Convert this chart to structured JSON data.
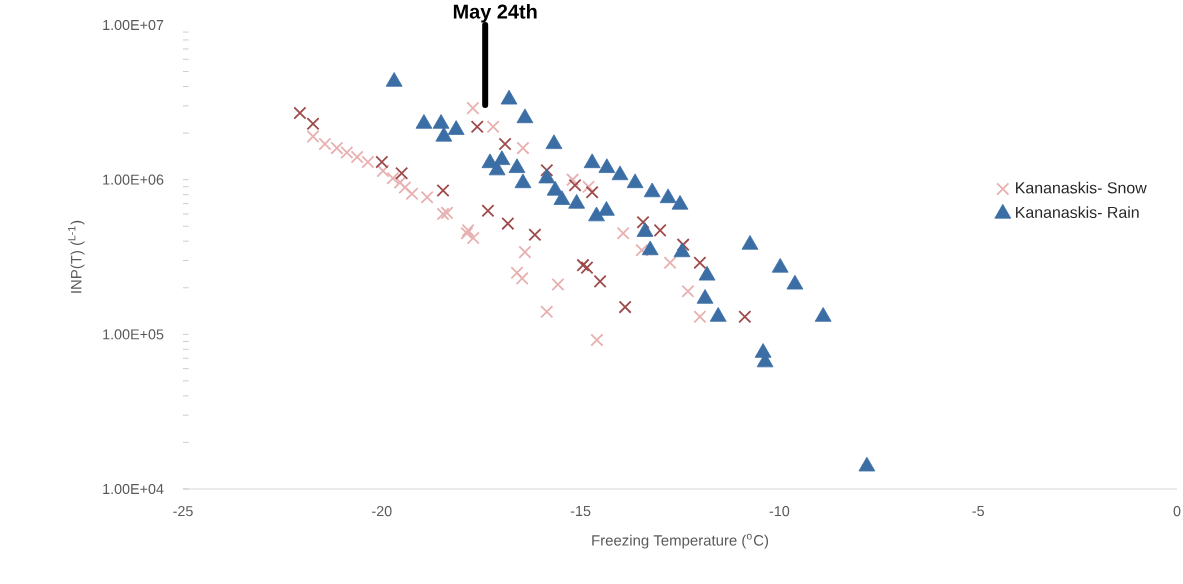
{
  "chart_data": {
    "type": "scatter",
    "xlabel": "Freezing Temperature ($^{o}$C)",
    "ylabel": "INP(T) ($^{L-1}$)",
    "log": "y",
    "legend": "right",
    "xlim": [
      -25,
      0
    ],
    "xticks": [
      -25,
      -20,
      -15,
      -10,
      -5,
      0
    ],
    "ylim": [
      10000,
      10000000
    ],
    "yticks": [
      {
        "value": 10000,
        "label": "1.00E+04"
      },
      {
        "value": 100000,
        "label": "1.00E+05"
      },
      {
        "value": 1000000,
        "label": "1.00E+06"
      },
      {
        "value": 10000000,
        "label": "1.00E+07"
      }
    ],
    "ref_lines": [
      {
        "axis": "x",
        "value": -17.4,
        "label": "May 24th",
        "color": "#000000"
      }
    ],
    "series": [
      {
        "name": "Kananaskis- Snow",
        "color": "#e8b0b0",
        "marker": "cross",
        "x": [
          -21.73,
          -21.43,
          -21.13,
          -20.88,
          -20.62,
          -20.35,
          -19.97,
          -19.72,
          -19.54,
          -19.42,
          -19.24,
          -18.86,
          -18.46,
          -17.86,
          -17.7,
          -17.71,
          -17.2,
          -16.45,
          -16.6,
          -18.36,
          -17.83,
          -16.4,
          -16.47,
          -15.57,
          -15.85,
          -14.59,
          -13.93,
          -12.75,
          -12.3,
          -12.0,
          -13.46,
          -15.2,
          -14.8
        ],
        "values": [
          1900000,
          1700000,
          1600000,
          1500000,
          1400000,
          1300000,
          1140000,
          1020000,
          960000,
          890000,
          810000,
          770000,
          600000,
          450000,
          420000,
          2900000,
          2200000,
          1600000,
          250000,
          610000,
          470000,
          340000,
          230000,
          210000,
          140000,
          92000,
          450000,
          290000,
          190000,
          130000,
          350000,
          1000000,
          900000
        ]
      },
      {
        "color": "#9e4a4a",
        "marker": "cross",
        "x": [
          -22.06,
          -21.73,
          -20.0,
          -19.5,
          -18.46,
          -17.6,
          -17.33,
          -16.83,
          -16.9,
          -15.85,
          -15.14,
          -14.71,
          -16.15,
          -14.94,
          -14.84,
          -14.51,
          -13.88,
          -13.43,
          -13.0,
          -12.42,
          -12.0,
          -10.87
        ],
        "values": [
          2700000,
          2300000,
          1300000,
          1100000,
          850000,
          2200000,
          630000,
          520000,
          1700000,
          1150000,
          920000,
          830000,
          440000,
          280000,
          270000,
          220000,
          150000,
          530000,
          470000,
          380000,
          290000,
          130000
        ]
      },
      {
        "name": "Kananaskis- Rain",
        "color": "#3b6ea5",
        "marker": "triangle",
        "x": [
          -19.69,
          -18.94,
          -18.51,
          -18.44,
          -18.13,
          -16.8,
          -16.4,
          -15.67,
          -17.28,
          -16.98,
          -16.6,
          -16.45,
          -17.1,
          -15.85,
          -15.64,
          -15.47,
          -15.1,
          -14.6,
          -14.35,
          -14.71,
          -14.34,
          -14.01,
          -13.63,
          -13.2,
          -12.8,
          -12.5,
          -13.38,
          -13.25,
          -12.45,
          -11.82,
          -11.87,
          -11.54,
          -10.74,
          -9.98,
          -9.61,
          -8.9,
          -10.41,
          -10.36,
          -7.8
        ],
        "values": [
          4300000,
          2300000,
          2300000,
          1900000,
          2100000,
          3300000,
          2500000,
          1700000,
          1280000,
          1340000,
          1190000,
          950000,
          1150000,
          1020000,
          850000,
          740000,
          700000,
          580000,
          630000,
          1280000,
          1190000,
          1070000,
          950000,
          830000,
          760000,
          690000,
          460000,
          350000,
          340000,
          240000,
          170000,
          130000,
          380000,
          270000,
          210000,
          130000,
          76000,
          66000,
          14000
        ]
      }
    ]
  }
}
